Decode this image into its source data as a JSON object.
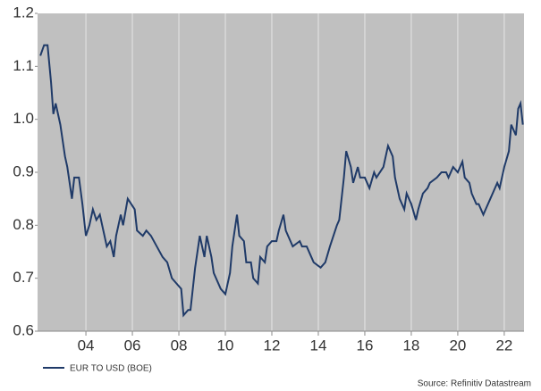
{
  "chart_data": {
    "type": "line",
    "series": [
      {
        "name": "EUR TO USD (BOE)",
        "color": "#1f3a68",
        "x": [
          2.04,
          2.2,
          2.35,
          2.5,
          2.6,
          2.7,
          2.9,
          3.1,
          3.2,
          3.4,
          3.5,
          3.7,
          3.85,
          4.0,
          4.15,
          4.3,
          4.45,
          4.6,
          4.75,
          4.9,
          5.05,
          5.2,
          5.3,
          5.5,
          5.6,
          5.8,
          5.95,
          6.1,
          6.2,
          6.45,
          6.6,
          6.8,
          7.05,
          7.3,
          7.5,
          7.7,
          7.9,
          8.1,
          8.2,
          8.4,
          8.5,
          8.7,
          8.9,
          9.1,
          9.2,
          9.4,
          9.5,
          9.8,
          10.0,
          10.2,
          10.3,
          10.5,
          10.6,
          10.8,
          10.9,
          11.1,
          11.2,
          11.4,
          11.5,
          11.7,
          11.8,
          12.0,
          12.2,
          12.3,
          12.5,
          12.6,
          12.8,
          12.9,
          13.2,
          13.3,
          13.5,
          13.7,
          13.8,
          14.1,
          14.3,
          14.5,
          14.8,
          14.9,
          15.1,
          15.2,
          15.4,
          15.5,
          15.7,
          15.8,
          16.0,
          16.2,
          16.4,
          16.5,
          16.8,
          17.0,
          17.2,
          17.3,
          17.5,
          17.7,
          17.8,
          18.0,
          18.2,
          18.3,
          18.5,
          18.7,
          18.8,
          19.1,
          19.3,
          19.5,
          19.6,
          19.8,
          20.0,
          20.2,
          20.3,
          20.5,
          20.6,
          20.8,
          20.9,
          21.1,
          21.2,
          21.4,
          21.5,
          21.7,
          21.8,
          22.0,
          22.2,
          22.3,
          22.5,
          22.6,
          22.7,
          22.8
        ],
        "values": [
          1.12,
          1.14,
          1.14,
          1.07,
          1.01,
          1.03,
          0.99,
          0.93,
          0.91,
          0.85,
          0.89,
          0.89,
          0.84,
          0.78,
          0.8,
          0.83,
          0.81,
          0.82,
          0.79,
          0.76,
          0.77,
          0.74,
          0.78,
          0.82,
          0.8,
          0.85,
          0.84,
          0.83,
          0.79,
          0.78,
          0.79,
          0.78,
          0.76,
          0.74,
          0.73,
          0.7,
          0.69,
          0.68,
          0.63,
          0.64,
          0.64,
          0.72,
          0.78,
          0.74,
          0.78,
          0.74,
          0.71,
          0.68,
          0.67,
          0.71,
          0.76,
          0.82,
          0.78,
          0.77,
          0.73,
          0.73,
          0.7,
          0.69,
          0.74,
          0.73,
          0.76,
          0.77,
          0.77,
          0.79,
          0.82,
          0.79,
          0.77,
          0.76,
          0.77,
          0.76,
          0.76,
          0.74,
          0.73,
          0.72,
          0.73,
          0.76,
          0.8,
          0.81,
          0.89,
          0.94,
          0.91,
          0.88,
          0.91,
          0.89,
          0.89,
          0.87,
          0.9,
          0.89,
          0.91,
          0.95,
          0.93,
          0.89,
          0.85,
          0.83,
          0.86,
          0.84,
          0.81,
          0.83,
          0.86,
          0.87,
          0.88,
          0.89,
          0.9,
          0.9,
          0.89,
          0.91,
          0.9,
          0.92,
          0.89,
          0.88,
          0.86,
          0.84,
          0.84,
          0.82,
          0.83,
          0.85,
          0.86,
          0.88,
          0.87,
          0.91,
          0.94,
          0.99,
          0.97,
          1.02,
          1.03,
          0.99
        ]
      }
    ],
    "xlim": [
      1.92,
      22.85
    ],
    "xticks": [
      {
        "value": 4,
        "label": "04"
      },
      {
        "value": 6,
        "label": "06"
      },
      {
        "value": 8,
        "label": "08"
      },
      10,
      12,
      14,
      16,
      18,
      20,
      22
    ],
    "ylim": [
      0.6,
      1.2
    ],
    "yticks": [
      0.6,
      0.7,
      0.8,
      0.9,
      {
        "value": 1,
        "label": "1.0"
      },
      1.1,
      1.2
    ],
    "grid": "x",
    "background": "#c0c0c0",
    "source": "Source: Refinitiv Datastream"
  }
}
